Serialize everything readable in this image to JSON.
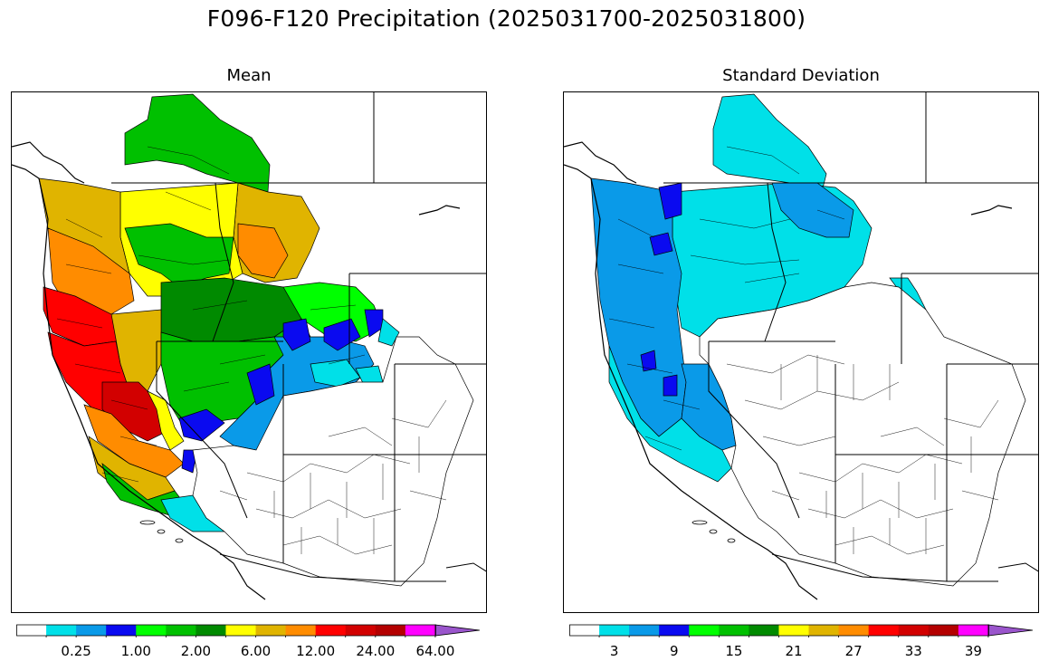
{
  "title": "F096-F120 Precipitation (2025031700-2025031800)",
  "panels": {
    "mean": {
      "title": "Mean"
    },
    "std": {
      "title": "Standard Deviation"
    }
  },
  "colorbar_colors": [
    "#ffffff",
    "#00e0e8",
    "#0a9ae8",
    "#0a0af0",
    "#00ff00",
    "#00c000",
    "#008a00",
    "#ffff00",
    "#e0b400",
    "#ff8c00",
    "#ff0000",
    "#d20000",
    "#b40000",
    "#ff00ff",
    "#9a55cc"
  ],
  "colorbar_mean": {
    "tick_labels": [
      "0.25",
      "1.00",
      "2.00",
      "6.00",
      "12.00",
      "24.00",
      "64.00"
    ],
    "tick_boundary_index": [
      2,
      4,
      6,
      8,
      10,
      12,
      14
    ],
    "extend": "max"
  },
  "colorbar_std": {
    "tick_labels": [
      "3",
      "9",
      "15",
      "21",
      "27",
      "33",
      "39"
    ],
    "tick_segment_index": [
      1,
      3,
      5,
      7,
      9,
      11,
      13
    ],
    "extend": "max"
  },
  "map_regions": {
    "mean": [
      {
        "zone": "far-north BC",
        "value_class": "green",
        "color": "#00c000"
      },
      {
        "zone": "Pacific NW coast",
        "value_class": "dark yellow",
        "color": "#e0b400"
      },
      {
        "zone": "Oregon/N. California coast",
        "value_class": "red",
        "color": "#ff0000"
      },
      {
        "zone": "Idaho/Montana",
        "value_class": "yellow-orange",
        "color": "#ffff00"
      },
      {
        "zone": "Sierra Nevada",
        "value_class": "red",
        "color": "#d20000"
      },
      {
        "zone": "Great Basin",
        "value_class": "green",
        "color": "#00c000"
      },
      {
        "zone": "Wyoming/Colorado",
        "value_class": "blue",
        "color": "#0a9ae8"
      },
      {
        "zone": "Southwest",
        "value_class": "below threshold",
        "color": "#ffffff"
      }
    ],
    "std": [
      {
        "zone": "Pacific coast",
        "value_class": "blue",
        "color": "#0a9ae8"
      },
      {
        "zone": "inland northwest",
        "value_class": "cyan",
        "color": "#00e0e8"
      },
      {
        "zone": "Southwest",
        "value_class": "below threshold",
        "color": "#ffffff"
      }
    ]
  }
}
